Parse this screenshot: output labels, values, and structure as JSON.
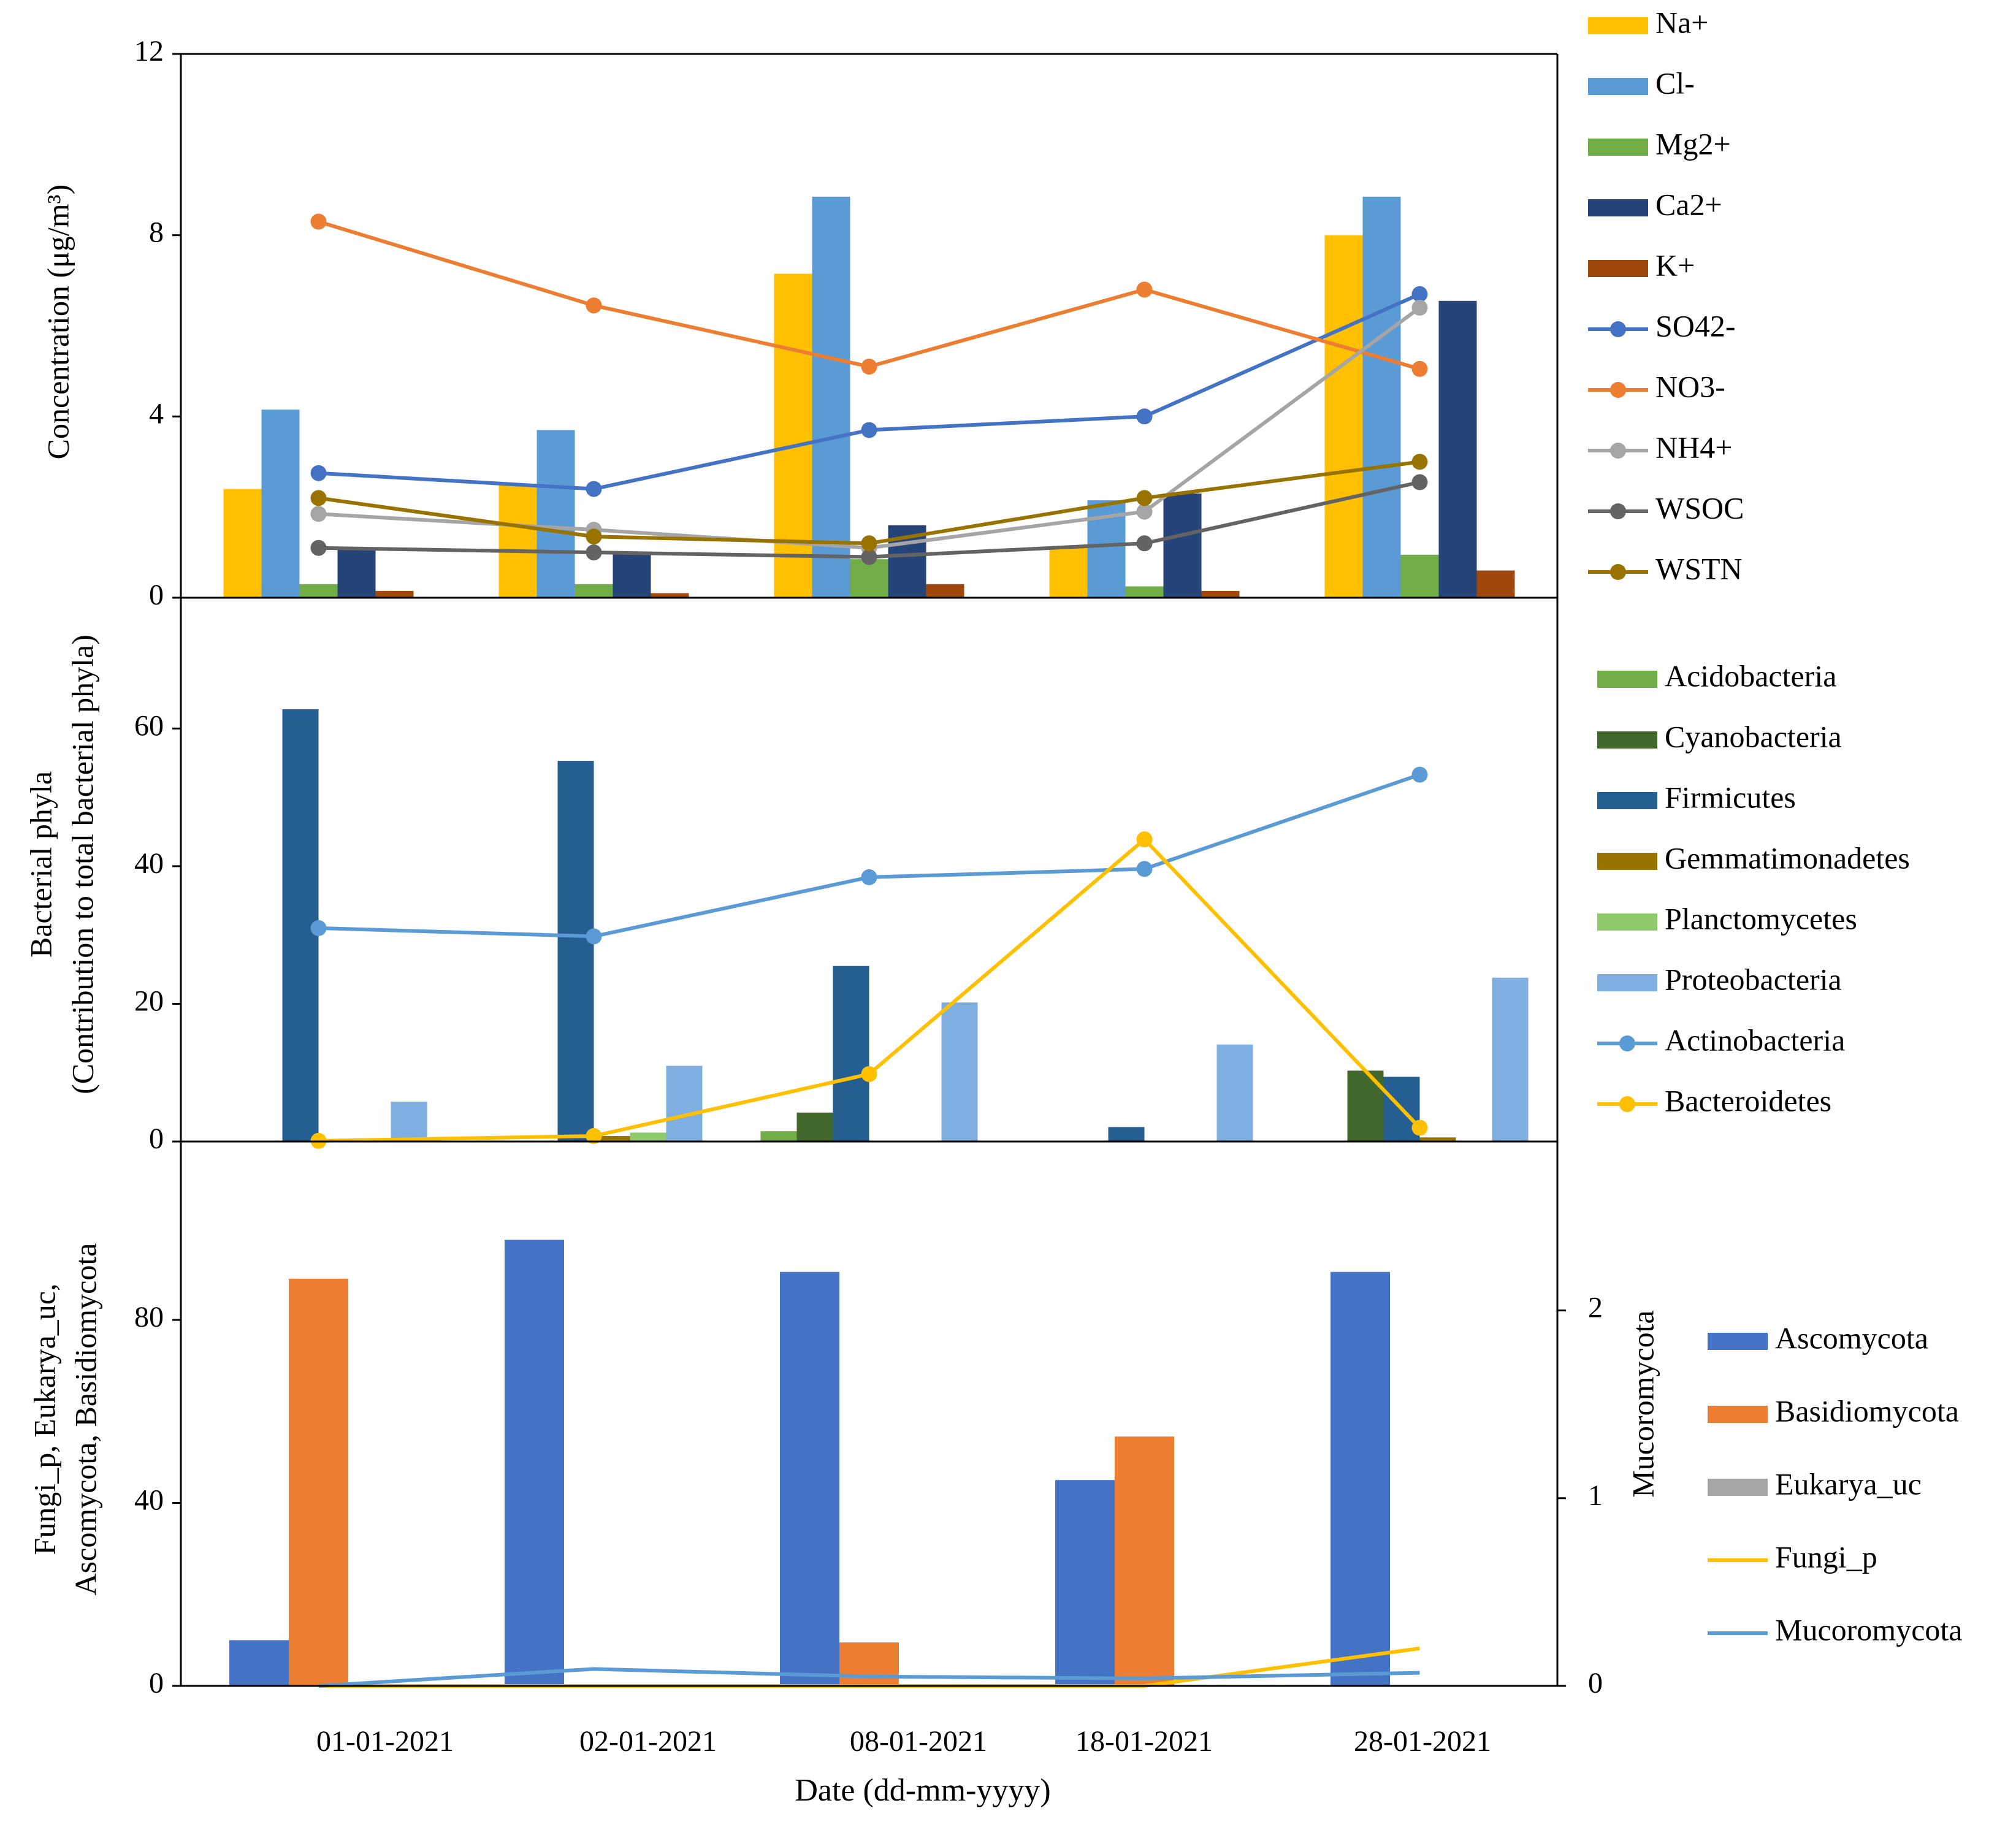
{
  "chart_data": [
    {
      "type": "bar",
      "panel": "ions",
      "categories": [
        "01-01-2021",
        "02-01-2021",
        "08-01-2021",
        "18-01-2021",
        "28-01-2021"
      ],
      "ylabel": "Concentration (μg/m³)",
      "ylim": [
        0,
        12
      ],
      "yticks": [
        0,
        4,
        8,
        12
      ],
      "legend_position": "right",
      "series": [
        {
          "name": "Na+",
          "kind": "bar",
          "color": "#FFC000",
          "values": [
            2.4,
            2.5,
            7.15,
            1.1,
            8.0
          ]
        },
        {
          "name": "Cl-",
          "kind": "bar",
          "color": "#5B9BD5",
          "values": [
            4.15,
            3.7,
            8.85,
            2.15,
            8.85
          ]
        },
        {
          "name": "Mg2+",
          "kind": "bar",
          "color": "#70AD47",
          "values": [
            0.3,
            0.3,
            0.85,
            0.25,
            0.95
          ]
        },
        {
          "name": "Ca2+",
          "kind": "bar",
          "color": "#264478",
          "values": [
            1.1,
            1.0,
            1.6,
            2.3,
            6.55
          ]
        },
        {
          "name": "K+",
          "kind": "bar",
          "color": "#9E480E",
          "values": [
            0.15,
            0.1,
            0.3,
            0.15,
            0.6
          ]
        },
        {
          "name": "SO42-",
          "kind": "line",
          "color": "#4472C4",
          "values": [
            2.75,
            2.4,
            3.7,
            4.0,
            6.7
          ]
        },
        {
          "name": "NO3-",
          "kind": "line",
          "color": "#ED7D31",
          "values": [
            8.3,
            6.45,
            5.1,
            6.8,
            5.05
          ]
        },
        {
          "name": "NH4+",
          "kind": "line",
          "color": "#A5A5A5",
          "values": [
            1.85,
            1.5,
            1.1,
            1.9,
            6.4
          ]
        },
        {
          "name": "WSOC",
          "kind": "line",
          "color": "#636363",
          "values": [
            1.1,
            1.0,
            0.9,
            1.2,
            2.55
          ]
        },
        {
          "name": "WSTN",
          "kind": "line",
          "color": "#997300",
          "values": [
            2.2,
            1.35,
            1.2,
            2.2,
            3.0
          ]
        }
      ]
    },
    {
      "type": "bar",
      "panel": "bacteria",
      "categories": [
        "01-01-2021",
        "02-01-2021",
        "08-01-2021",
        "18-01-2021",
        "28-01-2021"
      ],
      "ylabel": "Bacterial phyla",
      "ylabel2": "(Contribution to total bacterial phyla)",
      "ylim": [
        0,
        79
      ],
      "yticks": [
        0,
        20,
        40,
        60
      ],
      "legend_position": "right",
      "series": [
        {
          "name": "Acidobacteria",
          "kind": "bar",
          "color": "#70AD47",
          "values": [
            0,
            0,
            1.5,
            0,
            0
          ]
        },
        {
          "name": "Cyanobacteria",
          "kind": "bar",
          "color": "#43682B",
          "values": [
            0,
            0,
            4.2,
            0,
            10.3
          ]
        },
        {
          "name": "Firmicutes",
          "kind": "bar",
          "color": "#255E91",
          "values": [
            62.8,
            55.3,
            25.5,
            2.1,
            9.4
          ]
        },
        {
          "name": "Gemmatimonadetes",
          "kind": "bar",
          "color": "#997300",
          "values": [
            0,
            0.8,
            0,
            0,
            0.6
          ]
        },
        {
          "name": "Planctomycetes",
          "kind": "bar",
          "color": "#8FCB6B",
          "values": [
            0,
            1.3,
            0,
            0,
            0
          ]
        },
        {
          "name": "Proteobacteria",
          "kind": "bar",
          "color": "#7EAFE0",
          "values": [
            5.8,
            11.0,
            20.2,
            14.1,
            23.8
          ]
        },
        {
          "name": "Actinobacteria",
          "kind": "line",
          "color": "#5B9BD5",
          "values": [
            31.0,
            29.8,
            38.4,
            39.6,
            53.3
          ]
        },
        {
          "name": "Bacteroidetes",
          "kind": "line",
          "color": "#FFC000",
          "values": [
            0.1,
            0.8,
            9.8,
            43.9,
            2.0
          ]
        }
      ]
    },
    {
      "type": "bar",
      "panel": "fungi",
      "categories": [
        "01-01-2021",
        "02-01-2021",
        "08-01-2021",
        "18-01-2021",
        "28-01-2021"
      ],
      "xlabel": "Date (dd-mm-yyyy)",
      "ylabel": "Fungi_p, Eukarya_uc,",
      "ylabel2": "Ascomycota, Basidiomycota",
      "ylim": [
        0,
        119
      ],
      "yticks": [
        0,
        40,
        80
      ],
      "y2label": "Mucoromycota",
      "y2lim": [
        0,
        2.9
      ],
      "y2ticks": [
        0,
        1,
        2
      ],
      "legend_position": "right",
      "series": [
        {
          "name": "Ascomycota",
          "kind": "bar",
          "axis": "left",
          "color": "#4472C4",
          "values": [
            10,
            97.5,
            90.5,
            45,
            90.5
          ]
        },
        {
          "name": "Basidiomycota",
          "kind": "bar",
          "axis": "left",
          "color": "#ED7D31",
          "values": [
            89,
            0,
            9.5,
            54.5,
            0
          ]
        },
        {
          "name": "Eukarya_uc",
          "kind": "bar",
          "axis": "left",
          "color": "#A5A5A5",
          "values": [
            0,
            0,
            0,
            0,
            0
          ]
        },
        {
          "name": "Fungi_p",
          "kind": "line",
          "axis": "right",
          "color": "#FFC000",
          "values": [
            0,
            0,
            0,
            0,
            0.2
          ]
        },
        {
          "name": "Mucoromycota",
          "kind": "line",
          "axis": "right",
          "color": "#5B9BD5",
          "values": [
            0,
            0.09,
            0.05,
            0.04,
            0.07
          ]
        }
      ]
    }
  ]
}
